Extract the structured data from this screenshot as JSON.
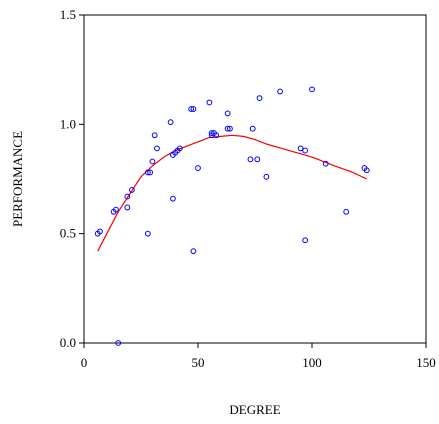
{
  "chart_data": {
    "type": "scatter",
    "title": "",
    "xlabel": "DEGREE",
    "ylabel": "PERFORMANCE",
    "xlim": [
      0,
      150
    ],
    "ylim": [
      0.0,
      1.5
    ],
    "x_ticks": [
      "0",
      "50",
      "100",
      "150"
    ],
    "y_ticks": [
      "0.0",
      "0.5",
      "1.0",
      "1.5"
    ],
    "grid": false,
    "legend": "none",
    "marker_color": "#0000ff",
    "line_color": "#ff0000",
    "series": [
      {
        "type": "scatter",
        "points": [
          [
            6,
            0.5
          ],
          [
            7,
            0.51
          ],
          [
            13,
            0.6
          ],
          [
            14,
            0.61
          ],
          [
            15,
            0.0
          ],
          [
            19,
            0.62
          ],
          [
            19,
            0.67
          ],
          [
            21,
            0.7
          ],
          [
            28,
            0.5
          ],
          [
            28,
            0.78
          ],
          [
            29,
            0.78
          ],
          [
            30,
            0.83
          ],
          [
            31,
            0.95
          ],
          [
            32,
            0.89
          ],
          [
            38,
            1.01
          ],
          [
            39,
            0.66
          ],
          [
            39,
            0.86
          ],
          [
            40,
            0.87
          ],
          [
            41,
            0.88
          ],
          [
            42,
            0.89
          ],
          [
            47,
            1.07
          ],
          [
            48,
            1.07
          ],
          [
            48,
            0.42
          ],
          [
            50,
            0.8
          ],
          [
            55,
            1.1
          ],
          [
            56,
            0.95
          ],
          [
            56,
            0.96
          ],
          [
            57,
            0.96
          ],
          [
            58,
            0.95
          ],
          [
            63,
            1.05
          ],
          [
            63,
            0.98
          ],
          [
            64,
            0.98
          ],
          [
            73,
            0.84
          ],
          [
            74,
            0.98
          ],
          [
            76,
            0.84
          ],
          [
            77,
            1.12
          ],
          [
            80,
            0.76
          ],
          [
            86,
            1.15
          ],
          [
            95,
            0.89
          ],
          [
            97,
            0.88
          ],
          [
            97,
            0.47
          ],
          [
            100,
            1.16
          ],
          [
            106,
            0.82
          ],
          [
            115,
            0.6
          ],
          [
            123,
            0.8
          ],
          [
            124,
            0.79
          ]
        ]
      },
      {
        "type": "line",
        "points": [
          [
            6,
            0.42
          ],
          [
            10,
            0.5
          ],
          [
            15,
            0.6
          ],
          [
            20,
            0.68
          ],
          [
            25,
            0.76
          ],
          [
            30,
            0.81
          ],
          [
            35,
            0.85
          ],
          [
            40,
            0.88
          ],
          [
            45,
            0.9
          ],
          [
            50,
            0.92
          ],
          [
            55,
            0.94
          ],
          [
            60,
            0.945
          ],
          [
            65,
            0.95
          ],
          [
            70,
            0.945
          ],
          [
            75,
            0.93
          ],
          [
            80,
            0.91
          ],
          [
            90,
            0.88
          ],
          [
            100,
            0.85
          ],
          [
            110,
            0.81
          ],
          [
            118,
            0.78
          ],
          [
            124,
            0.75
          ]
        ]
      }
    ]
  }
}
